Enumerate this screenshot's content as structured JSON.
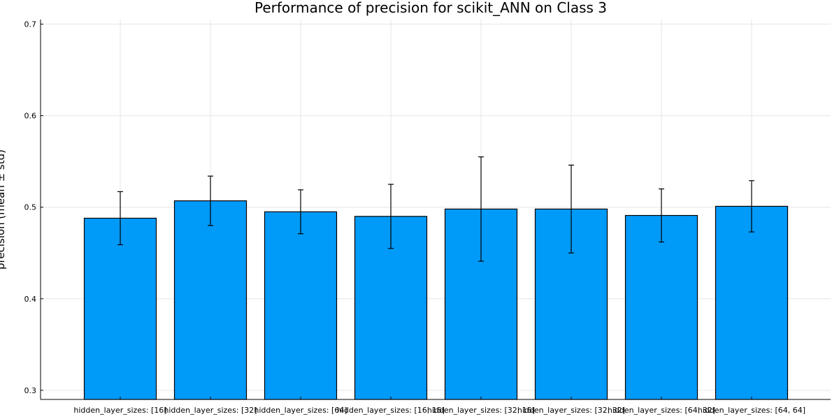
{
  "chart_data": {
    "type": "bar",
    "title": "Performance of precision for scikit_ANN on Class 3",
    "ylabel": "precision (mean ± std)",
    "xlabel": "",
    "ylim": [
      0.29,
      0.705
    ],
    "yticks": [
      0.3,
      0.4,
      0.5,
      0.6,
      0.7
    ],
    "ytick_labels": [
      "0.3",
      "0.4",
      "0.5",
      "0.6",
      "0.7"
    ],
    "grid": true,
    "bar_color": "#009AF9",
    "categories": [
      "hidden_layer_sizes: [16]",
      "hidden_layer_sizes: [32]",
      "hidden_layer_sizes: [64]",
      "hidden_layer_sizes: [16, 16]",
      "hidden_layer_sizes: [32, 16]",
      "hidden_layer_sizes: [32, 32]",
      "hidden_layer_sizes: [64, 32]",
      "hidden_layer_sizes: [64, 64]"
    ],
    "values": [
      0.488,
      0.507,
      0.495,
      0.49,
      0.498,
      0.498,
      0.491,
      0.501
    ],
    "errors": [
      0.029,
      0.027,
      0.024,
      0.035,
      0.057,
      0.048,
      0.029,
      0.028
    ]
  }
}
